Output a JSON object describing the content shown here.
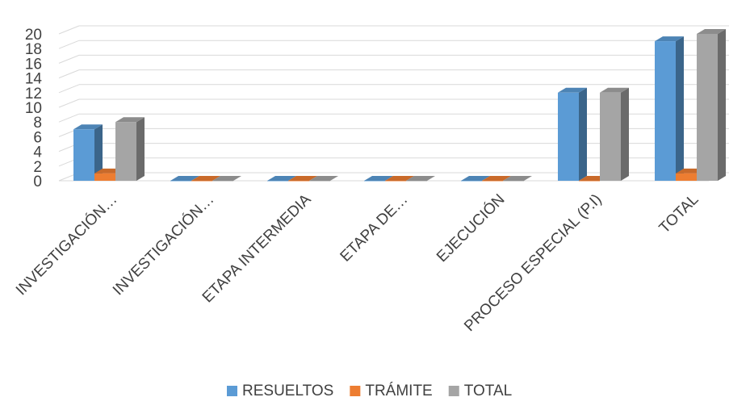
{
  "chart_data": {
    "type": "bar",
    "style": "3d-clustered-column",
    "categories": [
      "INVESTIGACIÓN…",
      "INVESTIGACIÓN…",
      "ETAPA INTERMEDIA",
      "ETAPA DE…",
      "EJECUCIÓN",
      "PROCESO ESPECIAL (P.I)",
      "TOTAL"
    ],
    "series": [
      {
        "name": "RESUELTOS",
        "values": [
          7,
          0,
          0,
          0,
          0,
          12,
          19
        ],
        "color": "#5b9bd5"
      },
      {
        "name": "TRÁMITE",
        "values": [
          1,
          0,
          0,
          0,
          0,
          0,
          1
        ],
        "color": "#ed7d31"
      },
      {
        "name": "TOTAL",
        "values": [
          8,
          0,
          0,
          0,
          0,
          12,
          20
        ],
        "color": "#a5a5a5"
      }
    ],
    "y_ticks": [
      "0",
      "2",
      "4",
      "6",
      "8",
      "10",
      "12",
      "14",
      "16",
      "18",
      "20"
    ],
    "ylim": [
      0,
      20
    ],
    "grid": true,
    "legend_position": "bottom"
  }
}
